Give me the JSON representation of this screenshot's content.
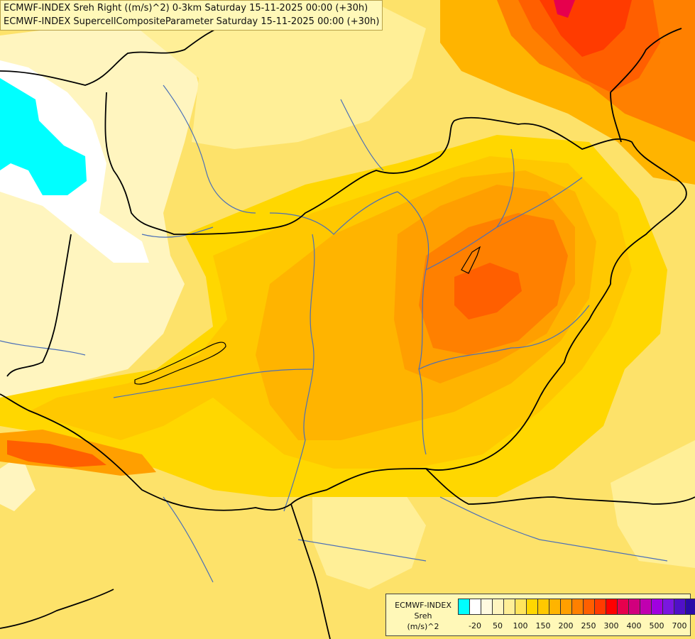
{
  "title": {
    "line1": "ECMWF-INDEX Sreh Right ((m/s)^2) 0-3km Saturday 15-11-2025 00:00 (+30h)",
    "line2": "ECMWF-INDEX SupercellCompositeParameter Saturday 15-11-2025 00:00 (+30h)"
  },
  "legend": {
    "source": "ECMWF-INDEX",
    "variable": "Sreh",
    "unit": "(m/s)^2",
    "colors": [
      "#00ffff",
      "#ffffff",
      "#fffae0",
      "#fff5bf",
      "#ffef97",
      "#ffe55c",
      "#ffd700",
      "#ffc800",
      "#ffb400",
      "#ff9f00",
      "#ff8000",
      "#ff5f00",
      "#ff3b00",
      "#ff0000",
      "#e6004d",
      "#d1007d",
      "#c000b0",
      "#a000e0",
      "#7a16e0",
      "#5010c8",
      "#2a0aa8",
      "#000080"
    ],
    "tick_labels": [
      "-20",
      "50",
      "100",
      "150",
      "200",
      "250",
      "300",
      "400",
      "500",
      "700"
    ]
  },
  "map": {
    "field_colors": {
      "background": "#fde26a",
      "cyan": "#00ffff",
      "white": "#ffffff",
      "pale": "#fff5bf",
      "light_yellow": "#ffef97",
      "yellow": "#ffe55c",
      "gold": "#ffd700",
      "light_orange": "#ffc800",
      "orange": "#ffb400",
      "dark_orange": "#ff9f00",
      "orange_red": "#ff8000",
      "red_orange": "#ff5f00",
      "red": "#ff3b00",
      "deep_red": "#e6004d"
    },
    "border_color": "#000000",
    "river_color": "#4a6fb8"
  }
}
